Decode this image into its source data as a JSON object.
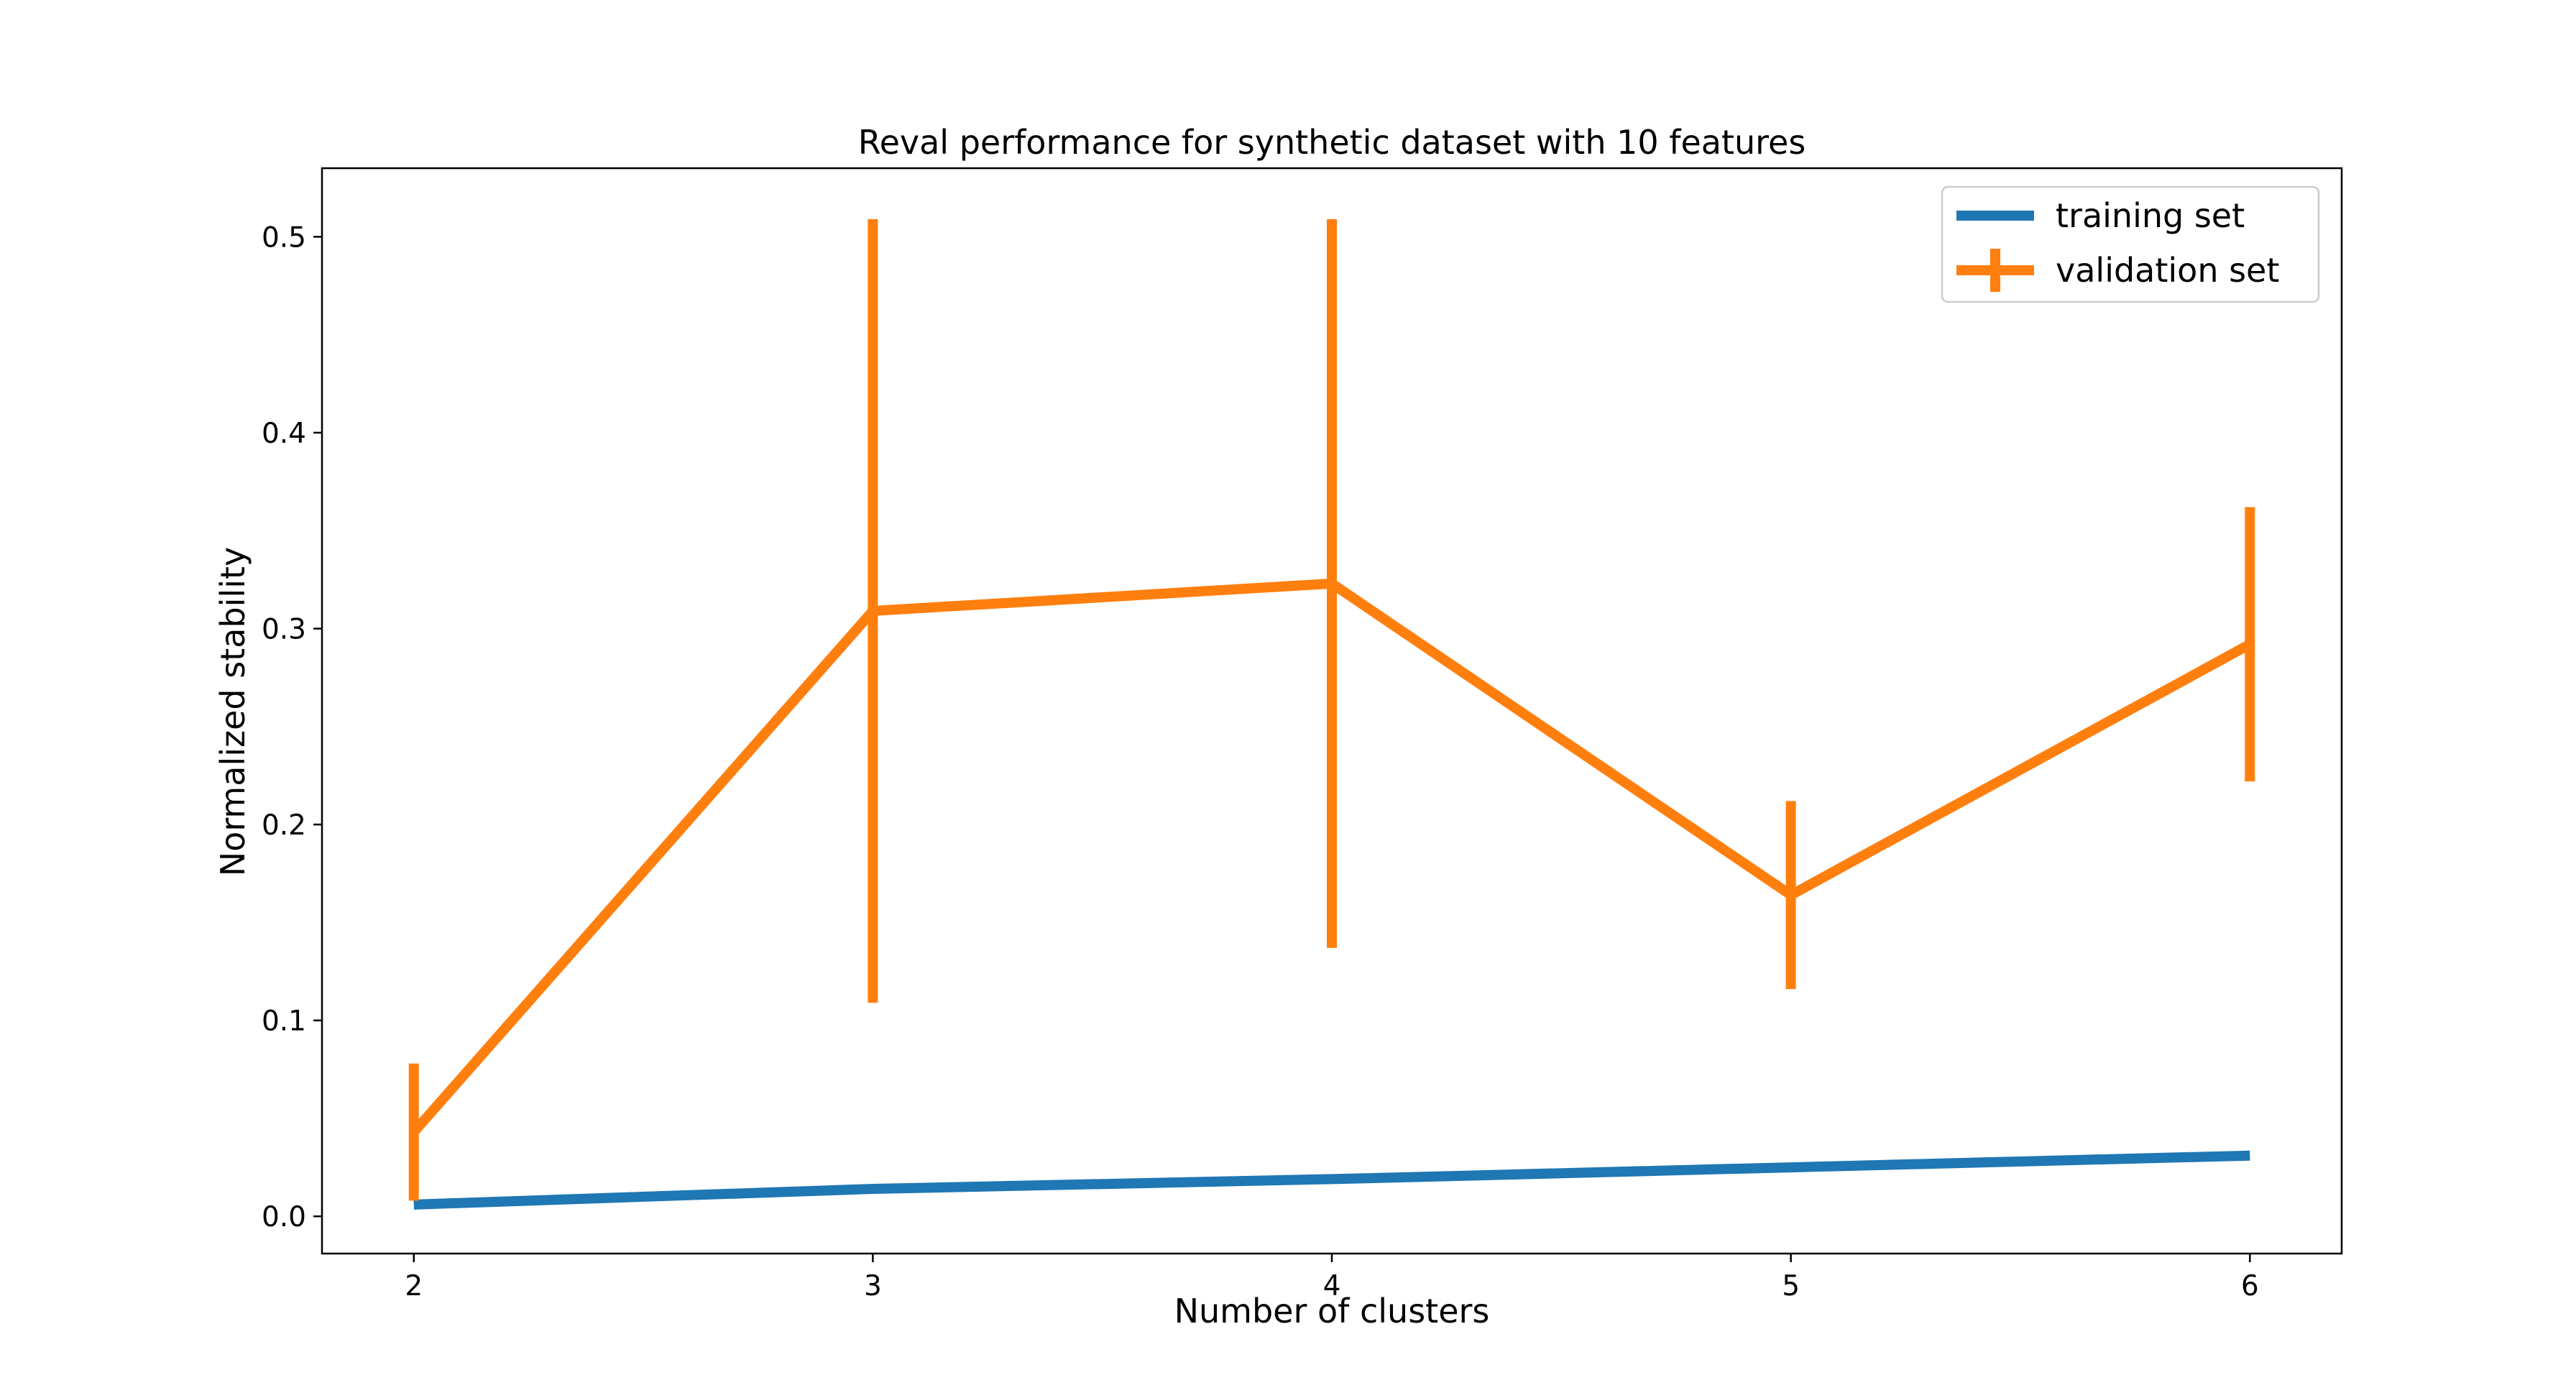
{
  "chart_data": {
    "type": "line",
    "title": "Reval performance for synthetic dataset with 10 features",
    "xlabel": "Number of clusters",
    "ylabel": "Normalized stability",
    "xlim": [
      1.8,
      6.2
    ],
    "ylim": [
      -0.019,
      0.535
    ],
    "x_ticks": [
      2,
      3,
      4,
      5,
      6
    ],
    "y_ticks": [
      0.0,
      0.1,
      0.2,
      0.3,
      0.4,
      0.5
    ],
    "x_tick_labels": [
      "2",
      "3",
      "4",
      "5",
      "6"
    ],
    "y_tick_labels": [
      "0.0",
      "0.1",
      "0.2",
      "0.3",
      "0.4",
      "0.5"
    ],
    "grid": false,
    "legend_position": "top-right",
    "x": [
      2,
      3,
      4,
      5,
      6
    ],
    "series": [
      {
        "name": "training set",
        "color": "#1f77b4",
        "values": [
          0.006,
          0.014,
          0.019,
          0.025,
          0.031
        ]
      },
      {
        "name": "validation set",
        "color": "#ff7f0e",
        "values": [
          0.043,
          0.309,
          0.323,
          0.164,
          0.292
        ],
        "error": [
          0.035,
          0.2,
          0.186,
          0.048,
          0.07
        ]
      }
    ]
  }
}
